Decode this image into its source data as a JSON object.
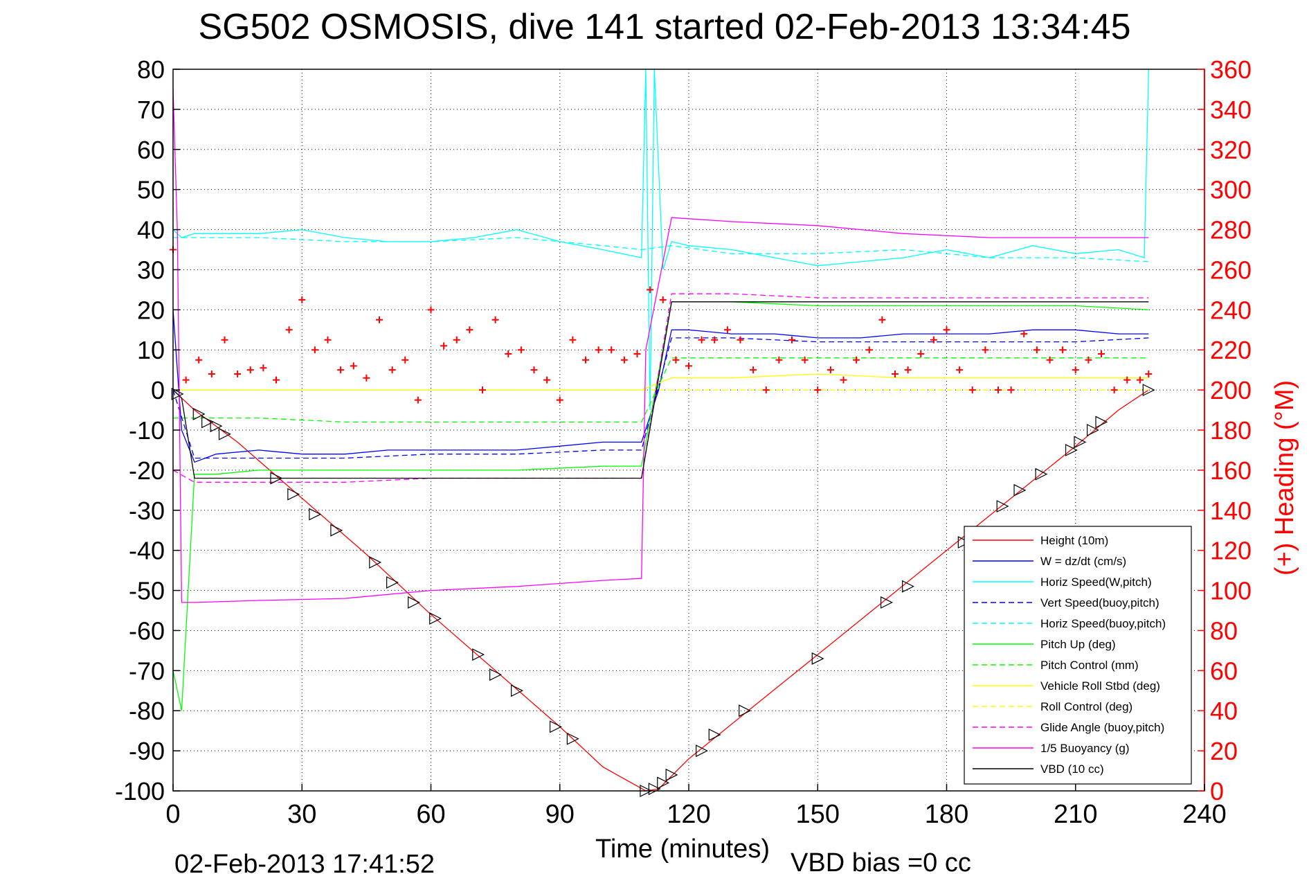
{
  "chart_data": {
    "type": "line",
    "title": "SG502 OSMOSIS, dive 141 started 02-Feb-2013 13:34:45",
    "xlabel": "Time (minutes)",
    "ylabel": "",
    "y2label": "(+) Heading (°M)",
    "footer_left": "02-Feb-2013 17:41:52",
    "footer_right": "VBD bias =0 cc",
    "xlim": [
      0,
      240
    ],
    "ylim": [
      -100,
      80
    ],
    "y2lim": [
      0,
      360
    ],
    "grid": true,
    "legend_position": "bottom-right",
    "x_ticks": [
      "0",
      "30",
      "60",
      "90",
      "120",
      "150",
      "180",
      "210",
      "240"
    ],
    "y_ticks": [
      "80",
      "70",
      "60",
      "50",
      "40",
      "30",
      "20",
      "10",
      "0",
      "-10",
      "-20",
      "-30",
      "-40",
      "-50",
      "-60",
      "-70",
      "-80",
      "-90",
      "-100"
    ],
    "y2_ticks": [
      "360",
      "340",
      "320",
      "300",
      "280",
      "260",
      "240",
      "220",
      "200",
      "180",
      "160",
      "140",
      "120",
      "100",
      "80",
      "60",
      "40",
      "20",
      "0"
    ],
    "colors": {
      "height": "#ff0000",
      "w": "#0000ff",
      "horiz_speed": "#00ffff",
      "pitch": "#00ff00",
      "roll": "#ffff00",
      "glide": "#ff00ff",
      "buoyancy": "#ff00ff",
      "vbd": "#000000",
      "heading": "#ff0000",
      "axis2": "#ff0000"
    },
    "series": [
      {
        "name": "Height (10m)",
        "key": "height",
        "style": "solid",
        "x": [
          0,
          5,
          15,
          30,
          45,
          60,
          75,
          90,
          100,
          110,
          113,
          120,
          135,
          150,
          165,
          180,
          195,
          210,
          220,
          227
        ],
        "y": [
          0,
          -5,
          -13,
          -27,
          -41,
          -56,
          -70,
          -84,
          -94,
          -100,
          -99.5,
          -92,
          -79,
          -66,
          -53,
          -40,
          -27,
          -14,
          -5,
          0
        ]
      },
      {
        "name": "W = dz/dt (cm/s)",
        "key": "w",
        "style": "solid",
        "x": [
          0,
          2,
          5,
          10,
          20,
          30,
          40,
          50,
          60,
          70,
          80,
          90,
          100,
          109,
          113,
          116,
          120,
          130,
          140,
          150,
          160,
          170,
          180,
          190,
          200,
          210,
          220,
          227
        ],
        "y": [
          20,
          -10,
          -18,
          -16,
          -15,
          -16,
          -16,
          -15,
          -15,
          -15,
          -15,
          -14,
          -13,
          -13,
          0,
          15,
          15,
          14,
          14,
          13,
          13,
          14,
          14,
          14,
          15,
          15,
          14,
          14
        ]
      },
      {
        "name": "Horiz Speed(W,pitch)",
        "key": "horiz_speed",
        "style": "solid",
        "x": [
          0,
          2,
          5,
          10,
          20,
          30,
          40,
          50,
          60,
          70,
          80,
          90,
          100,
          109,
          110,
          111,
          112,
          114,
          116,
          120,
          130,
          140,
          150,
          160,
          170,
          180,
          190,
          200,
          210,
          220,
          226,
          227
        ],
        "y": [
          40,
          38,
          39,
          39,
          39,
          40,
          38,
          37,
          37,
          38,
          40,
          37,
          35,
          33,
          80,
          -5,
          80,
          30,
          37,
          36,
          35,
          33,
          31,
          32,
          33,
          35,
          33,
          36,
          34,
          35,
          33,
          80
        ]
      },
      {
        "name": "Vert Speed(buoy,pitch)",
        "key": "w",
        "style": "dashed",
        "x": [
          0,
          5,
          20,
          40,
          60,
          80,
          100,
          109,
          116,
          130,
          150,
          170,
          190,
          210,
          227
        ],
        "y": [
          0,
          -17,
          -17,
          -17,
          -16,
          -16,
          -15,
          -15,
          13,
          13,
          12,
          12,
          12,
          12,
          13
        ]
      },
      {
        "name": "Horiz Speed(buoy,pitch)",
        "key": "horiz_speed",
        "style": "dashed",
        "x": [
          0,
          5,
          20,
          40,
          60,
          80,
          100,
          109,
          116,
          130,
          150,
          170,
          190,
          210,
          227
        ],
        "y": [
          38,
          38,
          38,
          37,
          37,
          38,
          36,
          35,
          36,
          34,
          34,
          35,
          33,
          33,
          32
        ]
      },
      {
        "name": "Pitch Up (deg)",
        "key": "pitch",
        "style": "solid",
        "x": [
          0,
          2,
          5,
          10,
          20,
          40,
          60,
          80,
          100,
          109,
          116,
          130,
          150,
          170,
          190,
          210,
          227
        ],
        "y": [
          -70,
          -80,
          -21,
          -21,
          -20,
          -20,
          -20,
          -20,
          -19,
          -19,
          22,
          22,
          21,
          21,
          21,
          21,
          20
        ]
      },
      {
        "name": "Pitch Control (mm)",
        "key": "pitch",
        "style": "dashed",
        "x": [
          0,
          5,
          20,
          40,
          60,
          80,
          100,
          109,
          116,
          130,
          150,
          170,
          190,
          210,
          227
        ],
        "y": [
          -7,
          -7,
          -7,
          -8,
          -8,
          -8,
          -8,
          -8,
          8,
          8,
          8,
          8,
          8,
          8,
          8
        ]
      },
      {
        "name": "Vehicle Roll Stbd (deg)",
        "key": "roll",
        "style": "solid",
        "x": [
          0,
          5,
          20,
          40,
          60,
          80,
          100,
          109,
          116,
          130,
          150,
          170,
          190,
          210,
          227
        ],
        "y": [
          0,
          0,
          0,
          0,
          0,
          0,
          0,
          0,
          3,
          3,
          4,
          3,
          3,
          3,
          3
        ]
      },
      {
        "name": "Roll Control (deg)",
        "key": "roll",
        "style": "dashed",
        "x": [
          0,
          5,
          20,
          40,
          60,
          80,
          100,
          109,
          116,
          130,
          150,
          170,
          190,
          210,
          227
        ],
        "y": [
          0,
          0,
          0,
          0,
          0,
          0,
          0,
          0,
          0,
          0,
          0,
          0,
          0,
          0,
          0
        ]
      },
      {
        "name": "Glide Angle (buoy,pitch)",
        "key": "glide",
        "style": "dashed",
        "x": [
          0,
          5,
          20,
          40,
          60,
          80,
          100,
          109,
          116,
          130,
          150,
          170,
          190,
          210,
          227
        ],
        "y": [
          -20,
          -23,
          -23,
          -23,
          -22,
          -22,
          -22,
          -22,
          24,
          24,
          23,
          23,
          23,
          23,
          23
        ]
      },
      {
        "name": "1/5 Buoyancy (g)",
        "key": "buoyancy",
        "style": "solid",
        "x": [
          0,
          1,
          2,
          5,
          20,
          40,
          60,
          80,
          100,
          109,
          110,
          116,
          130,
          150,
          170,
          190,
          210,
          227
        ],
        "y": [
          75,
          40,
          -53,
          -53,
          -52.5,
          -52,
          -50,
          -49,
          -47.5,
          -47,
          10,
          43,
          42,
          41,
          39,
          38,
          38,
          38
        ]
      },
      {
        "name": "VBD (10 cc)",
        "key": "vbd",
        "style": "solid",
        "x": [
          0,
          2,
          5,
          20,
          40,
          60,
          80,
          100,
          109,
          116,
          130,
          150,
          170,
          190,
          210,
          227
        ],
        "y": [
          0,
          -2,
          -22,
          -22,
          -22,
          -22,
          -22,
          -22,
          -22,
          22,
          22,
          22,
          22,
          22,
          22,
          22
        ]
      },
      {
        "key": "heading",
        "style": "marker",
        "x": [
          0,
          3,
          6,
          9,
          12,
          15,
          18,
          21,
          24,
          27,
          30,
          33,
          36,
          39,
          42,
          45,
          48,
          51,
          54,
          57,
          60,
          63,
          66,
          69,
          72,
          75,
          78,
          81,
          84,
          87,
          90,
          93,
          96,
          99,
          102,
          105,
          108,
          111,
          114,
          117,
          120,
          123,
          126,
          129,
          132,
          135,
          138,
          141,
          144,
          147,
          150,
          153,
          156,
          159,
          162,
          165,
          168,
          171,
          174,
          177,
          180,
          183,
          186,
          189,
          192,
          195,
          198,
          201,
          204,
          207,
          210,
          213,
          216,
          219,
          222,
          225,
          227
        ],
        "y": [
          270,
          205,
          215,
          208,
          225,
          208,
          210,
          211,
          205,
          230,
          245,
          220,
          225,
          210,
          212,
          206,
          235,
          210,
          215,
          195,
          240,
          222,
          225,
          230,
          200,
          235,
          218,
          220,
          210,
          205,
          195,
          225,
          215,
          220,
          220,
          215,
          218,
          250,
          245,
          215,
          212,
          225,
          225,
          230,
          225,
          210,
          200,
          215,
          225,
          215,
          200,
          210,
          205,
          215,
          220,
          235,
          208,
          210,
          218,
          225,
          230,
          210,
          200,
          220,
          200,
          200,
          228,
          220,
          215,
          220,
          210,
          215,
          218,
          200,
          205,
          205,
          208
        ]
      },
      {
        "key": "vbd",
        "style": "triangles",
        "x": [
          1,
          6,
          8,
          10,
          12,
          24,
          28,
          33,
          38,
          47,
          51,
          56,
          61,
          71,
          75,
          80,
          89,
          93,
          110,
          112,
          114,
          116,
          123,
          126,
          133,
          150,
          166,
          171,
          184,
          193,
          197,
          202,
          209,
          211,
          214,
          216,
          227
        ],
        "y": [
          -1,
          -6,
          -8,
          -9,
          -11,
          -22,
          -26,
          -31,
          -35,
          -43,
          -48,
          -53,
          -57,
          -66,
          -71,
          -75,
          -84,
          -87,
          -100,
          -99.5,
          -98,
          -96,
          -90,
          -86,
          -80,
          -67,
          -53,
          -49,
          -38,
          -29,
          -25,
          -21,
          -15,
          -13,
          -10,
          -8,
          0
        ]
      }
    ]
  }
}
